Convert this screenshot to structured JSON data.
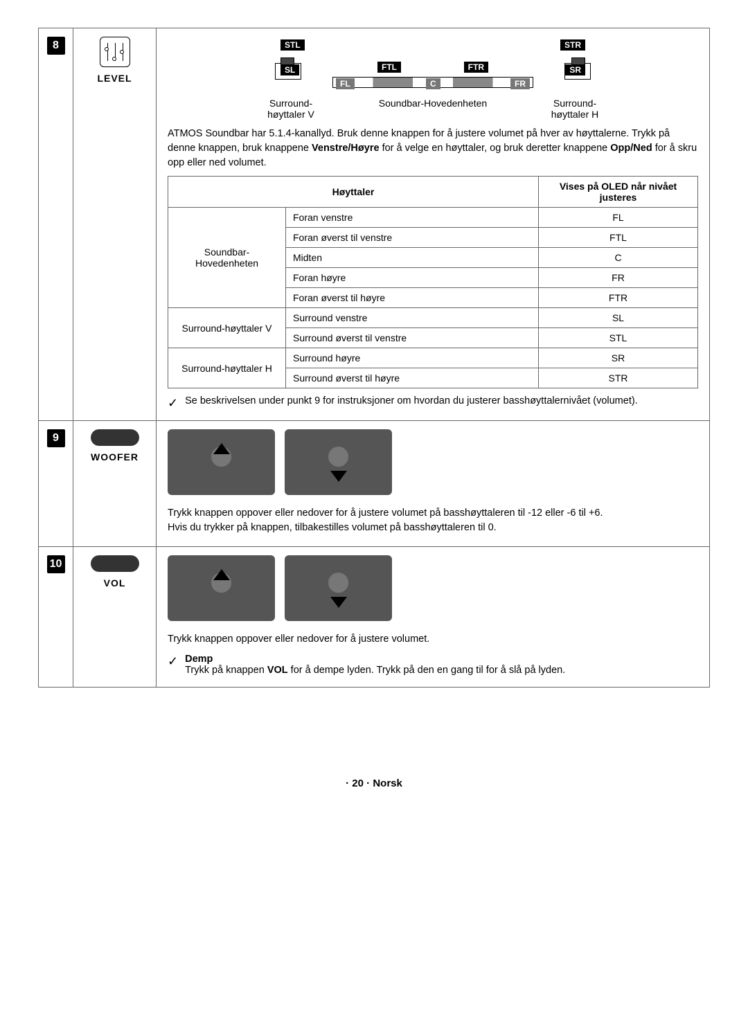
{
  "sections": [
    {
      "num": "8",
      "label": "LEVEL"
    },
    {
      "num": "9",
      "label": "WOOFER"
    },
    {
      "num": "10",
      "label": "VOL"
    }
  ],
  "diagram": {
    "tags": {
      "stl": "STL",
      "str": "STR",
      "sl": "SL",
      "sr": "SR",
      "ftl": "FTL",
      "ftr": "FTR",
      "fl": "FL",
      "c": "C",
      "fr": "FR"
    },
    "labels": {
      "left": "Surround-høyttaler V",
      "center": "Soundbar-Hovedenheten",
      "right": "Surround-høyttaler H"
    }
  },
  "level_intro": {
    "p1a": "ATMOS Soundbar har 5.1.4-kanallyd. Bruk denne knappen for å justere volumet på hver av høyttalerne. Trykk på denne knappen, bruk knappene ",
    "b1": "Venstre/Høyre",
    "p1b": " for å velge en høyttaler, og bruk deretter knappene ",
    "b2": "Opp/Ned",
    "p1c": " for å skru opp eller ned volumet."
  },
  "spk_table": {
    "header_speaker": "Høyttaler",
    "header_oled": "Vises på OLED når nivået justeres",
    "groups": [
      {
        "name": "Soundbar-Hovedenheten",
        "rows": [
          {
            "desc": "Foran venstre",
            "code": "FL"
          },
          {
            "desc": "Foran øverst til venstre",
            "code": "FTL"
          },
          {
            "desc": "Midten",
            "code": "C"
          },
          {
            "desc": "Foran høyre",
            "code": "FR"
          },
          {
            "desc": "Foran øverst til høyre",
            "code": "FTR"
          }
        ]
      },
      {
        "name": "Surround-høyttaler V",
        "rows": [
          {
            "desc": "Surround venstre",
            "code": "SL"
          },
          {
            "desc": "Surround øverst til venstre",
            "code": "STL"
          }
        ]
      },
      {
        "name": "Surround-høyttaler H",
        "rows": [
          {
            "desc": "Surround høyre",
            "code": "SR"
          },
          {
            "desc": "Surround øverst til høyre",
            "code": "STR"
          }
        ]
      }
    ]
  },
  "level_note": "Se beskrivelsen under punkt 9 for instruksjoner om hvordan du justerer basshøyttalernivået (volumet).",
  "woofer_text": {
    "p1": "Trykk knappen oppover eller nedover for å justere volumet på basshøyttaleren til -12 eller -6 til +6.",
    "p2": "Hvis du trykker på knappen, tilbakestilles volumet på basshøyttaleren til 0."
  },
  "vol_text": {
    "p1": "Trykk knappen oppover eller nedover for å justere volumet.",
    "demp_label": "Demp",
    "demp_a": "Trykk på knappen ",
    "demp_b": "VOL",
    "demp_c": " for å dempe lyden. Trykk på den en gang til for å slå på lyden."
  },
  "footer": "· 20 · Norsk"
}
